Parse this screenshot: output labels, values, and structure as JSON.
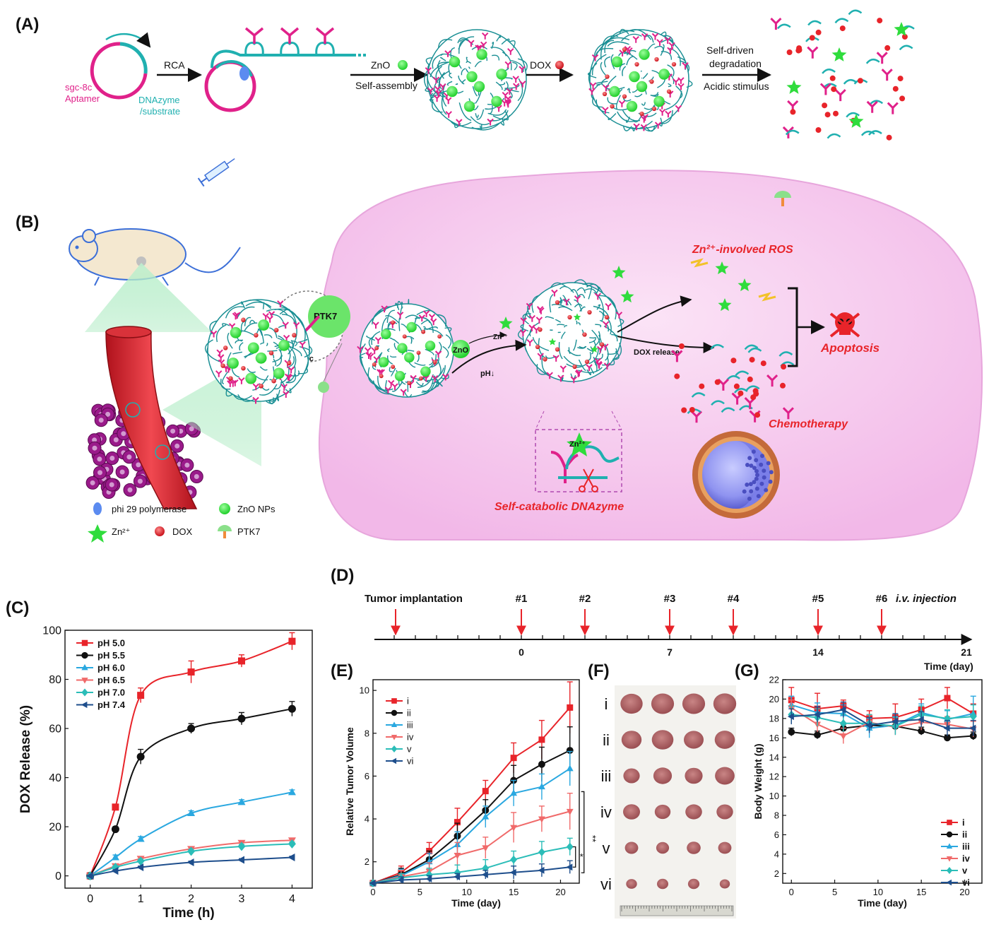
{
  "panel_labels": {
    "A": "(A)",
    "B": "(B)",
    "C": "(C)",
    "D": "(D)",
    "E": "(E)",
    "F": "(F)",
    "G": "(G)"
  },
  "colors": {
    "red": "#e8242a",
    "black": "#111111",
    "lightblue": "#2aa8e0",
    "salmon": "#f06a6a",
    "teal": "#2bbdb8",
    "navy": "#1e4e8c",
    "magenta": "#e0218a",
    "cyan": "#20b0b0",
    "green": "#2fdc3c",
    "cell": "#f4c4ec"
  },
  "panelA": {
    "template_left": "sgc-8c",
    "template_left2": "Aptamer",
    "template_right": "DNAzyme",
    "template_right2": "/substrate",
    "arrow1": "RCA",
    "arrow2_top": "ZnO",
    "arrow2_bottom": "Self-assembly",
    "arrow3_top": "DOX",
    "arrow4_top": "Self-driven",
    "arrow4_mid": "degradation",
    "arrow4_bottom": "Acidic stimulus"
  },
  "panelB": {
    "ptk7": "PTK7",
    "sgc8c": "sgc-8c",
    "zno": "ZnO",
    "zn": "Zn²⁺",
    "ph": "pH↓",
    "dox_release": "DOX release",
    "ros": "Zn²⁺-involved ROS",
    "apoptosis": "Apoptosis",
    "chemo": "Chemotherapy",
    "dnazyme_zn": "Zn²⁺",
    "self_catabolic": "Self-catabolic DNAzyme",
    "legend": [
      {
        "label": "phi 29 polymerase",
        "icon": "polymerase-icon"
      },
      {
        "label": "ZnO NPs",
        "icon": "zno-np-icon"
      },
      {
        "label": "Zn²⁺",
        "icon": "zinc-star-icon"
      },
      {
        "label": "DOX",
        "icon": "dox-dot-icon"
      },
      {
        "label": "PTK7",
        "icon": "ptk7-receptor-icon"
      }
    ]
  },
  "panelD": {
    "start_label": "Tumor implantation",
    "markers": [
      {
        "label": "#1",
        "day": 0
      },
      {
        "label": "#2",
        "day": 3
      },
      {
        "label": "#3",
        "day": 7
      },
      {
        "label": "#4",
        "day": 10
      },
      {
        "label": "#5",
        "day": 14
      },
      {
        "label": "#6",
        "day": 17
      }
    ],
    "injection_label": "i.v. injection",
    "ticks": [
      "0",
      "7",
      "14",
      "21"
    ],
    "axis_label": "Time (day)"
  },
  "panelF": {
    "rows": [
      "i",
      "ii",
      "iii",
      "iv",
      "v",
      "vi"
    ],
    "tumor_scale": [
      1.0,
      0.96,
      0.86,
      0.74,
      0.64,
      0.5
    ]
  },
  "chart_data": [
    {
      "id": "C",
      "type": "line",
      "xlabel": "Time (h)",
      "ylabel": "DOX Release (%)",
      "xlim": [
        -0.5,
        4.4
      ],
      "ylim": [
        -5,
        100
      ],
      "xticks": [
        0,
        1,
        2,
        3,
        4
      ],
      "yticks": [
        0,
        20,
        40,
        60,
        80,
        100
      ],
      "legend_position": "top-left",
      "x": [
        0,
        0.5,
        1,
        2,
        3,
        4
      ],
      "series": [
        {
          "name": "pH 5.0",
          "marker": "square",
          "color": "#e8242a",
          "values": [
            0,
            28,
            73.5,
            83,
            87.5,
            95.5
          ],
          "err": [
            0,
            1,
            3,
            4.5,
            2.5,
            3.5
          ]
        },
        {
          "name": "pH 5.5",
          "marker": "circle",
          "color": "#111111",
          "values": [
            0,
            19,
            48.5,
            60,
            64,
            68
          ],
          "err": [
            0,
            1,
            3,
            2,
            2.5,
            3
          ]
        },
        {
          "name": "pH 6.0",
          "marker": "triangle-up",
          "color": "#2aa8e0",
          "values": [
            0,
            7.5,
            15,
            25.5,
            30,
            34
          ],
          "err": [
            0,
            1,
            1,
            1,
            1,
            1
          ]
        },
        {
          "name": "pH 6.5",
          "marker": "triangle-down",
          "color": "#f06a6a",
          "values": [
            0,
            4,
            7,
            11,
            13.5,
            14.5
          ],
          "err": [
            0,
            0.6,
            0.8,
            0.8,
            0.8,
            0.8
          ]
        },
        {
          "name": "pH 7.0",
          "marker": "diamond",
          "color": "#2bbdb8",
          "values": [
            0,
            3.5,
            6,
            10,
            12,
            13
          ],
          "err": [
            0,
            0.6,
            0.8,
            0.8,
            0.8,
            0.8
          ]
        },
        {
          "name": "pH 7.4",
          "marker": "triangle-left",
          "color": "#1e4e8c",
          "values": [
            0,
            2,
            3.5,
            5.5,
            6.5,
            7.5
          ],
          "err": [
            0,
            0.5,
            0.5,
            0.5,
            0.5,
            0.5
          ]
        }
      ]
    },
    {
      "id": "E",
      "type": "line",
      "xlabel": "Time (day)",
      "ylabel": "Relative Tumor Volume",
      "xlim": [
        0,
        22
      ],
      "ylim": [
        1,
        10.5
      ],
      "xticks": [
        0,
        5,
        10,
        15,
        20
      ],
      "yticks": [
        2,
        4,
        6,
        8,
        10
      ],
      "legend_position": "top-left",
      "significance": [
        "*",
        "**"
      ],
      "x": [
        0,
        3,
        6,
        9,
        12,
        15,
        18,
        21
      ],
      "series": [
        {
          "name": "i",
          "marker": "square",
          "color": "#e8242a",
          "values": [
            1,
            1.5,
            2.5,
            3.85,
            5.3,
            6.85,
            7.7,
            9.2
          ],
          "err": [
            0,
            0.3,
            0.4,
            0.65,
            0.5,
            0.7,
            0.9,
            1.2
          ]
        },
        {
          "name": "ii",
          "marker": "circle",
          "color": "#111111",
          "values": [
            1,
            1.4,
            2.1,
            3.2,
            4.4,
            5.8,
            6.55,
            7.2
          ],
          "err": [
            0,
            0.3,
            0.4,
            0.6,
            0.5,
            0.7,
            0.8,
            1.1
          ]
        },
        {
          "name": "iii",
          "marker": "triangle-up",
          "color": "#2aa8e0",
          "values": [
            1,
            1.35,
            2.0,
            2.8,
            4.1,
            5.2,
            5.5,
            6.35
          ],
          "err": [
            0,
            0.3,
            0.4,
            0.6,
            0.5,
            0.6,
            0.6,
            0.8
          ]
        },
        {
          "name": "iv",
          "marker": "triangle-down",
          "color": "#f06a6a",
          "values": [
            1,
            1.3,
            1.55,
            2.3,
            2.65,
            3.6,
            4.0,
            4.35
          ],
          "err": [
            0,
            0.3,
            0.4,
            0.6,
            0.5,
            0.7,
            0.6,
            0.85
          ]
        },
        {
          "name": "v",
          "marker": "diamond",
          "color": "#2bbdb8",
          "values": [
            1,
            1.25,
            1.4,
            1.5,
            1.7,
            2.1,
            2.45,
            2.7
          ],
          "err": [
            0,
            0.2,
            0.3,
            0.35,
            0.4,
            0.4,
            0.5,
            0.4
          ]
        },
        {
          "name": "vi",
          "marker": "triangle-left",
          "color": "#1e4e8c",
          "values": [
            1,
            1.15,
            1.2,
            1.3,
            1.4,
            1.5,
            1.6,
            1.75
          ],
          "err": [
            0,
            0.15,
            0.15,
            0.15,
            0.2,
            0.3,
            0.3,
            0.3
          ]
        }
      ]
    },
    {
      "id": "G",
      "type": "line",
      "xlabel": "Time (day)",
      "ylabel": "Body Weight (g)",
      "xlim": [
        -1,
        22
      ],
      "ylim": [
        1,
        22
      ],
      "xticks": [
        0,
        5,
        10,
        15,
        20
      ],
      "yticks": [
        2,
        4,
        6,
        8,
        10,
        12,
        14,
        16,
        18,
        20,
        22
      ],
      "legend_position": "bottom-right",
      "x": [
        0,
        3,
        6,
        9,
        12,
        15,
        18,
        21
      ],
      "series": [
        {
          "name": "i",
          "marker": "square",
          "color": "#e8242a",
          "values": [
            19.9,
            19.0,
            19.3,
            18.0,
            18.1,
            18.9,
            20.1,
            18.5
          ],
          "err": [
            1.3,
            1.6,
            0.6,
            0.8,
            1.4,
            1.1,
            1.1,
            1.0
          ]
        },
        {
          "name": "ii",
          "marker": "circle",
          "color": "#111111",
          "values": [
            16.6,
            16.3,
            17.0,
            17.3,
            17.2,
            16.7,
            16.0,
            16.2
          ],
          "err": [
            0.4,
            0.4,
            0.4,
            0.4,
            0.4,
            0.4,
            0.3,
            0.4
          ]
        },
        {
          "name": "iii",
          "marker": "triangle-up",
          "color": "#2aa8e0",
          "values": [
            19.4,
            18.6,
            18.5,
            17.0,
            17.3,
            18.6,
            17.9,
            18.5
          ],
          "err": [
            0.9,
            1.0,
            0.9,
            1.0,
            0.9,
            0.9,
            0.9,
            1.8
          ]
        },
        {
          "name": "iv",
          "marker": "triangle-down",
          "color": "#f06a6a",
          "values": [
            19.1,
            17.4,
            16.2,
            17.6,
            17.1,
            17.6,
            17.4,
            16.9
          ],
          "err": [
            0.8,
            0.8,
            0.8,
            0.8,
            0.8,
            0.8,
            0.8,
            0.8
          ]
        },
        {
          "name": "v",
          "marker": "diamond",
          "color": "#2bbdb8",
          "values": [
            18.4,
            18.1,
            17.5,
            17.5,
            17.2,
            18.4,
            18.0,
            18.2
          ],
          "err": [
            0.9,
            0.9,
            0.9,
            0.9,
            0.9,
            0.9,
            0.9,
            1.2
          ]
        },
        {
          "name": "vi",
          "marker": "triangle-left",
          "color": "#1e4e8c",
          "values": [
            18.2,
            18.4,
            18.9,
            17.3,
            17.7,
            17.9,
            17.0,
            17.0
          ],
          "err": [
            0.8,
            0.8,
            0.8,
            0.8,
            0.8,
            0.8,
            0.8,
            0.8
          ]
        }
      ]
    }
  ]
}
